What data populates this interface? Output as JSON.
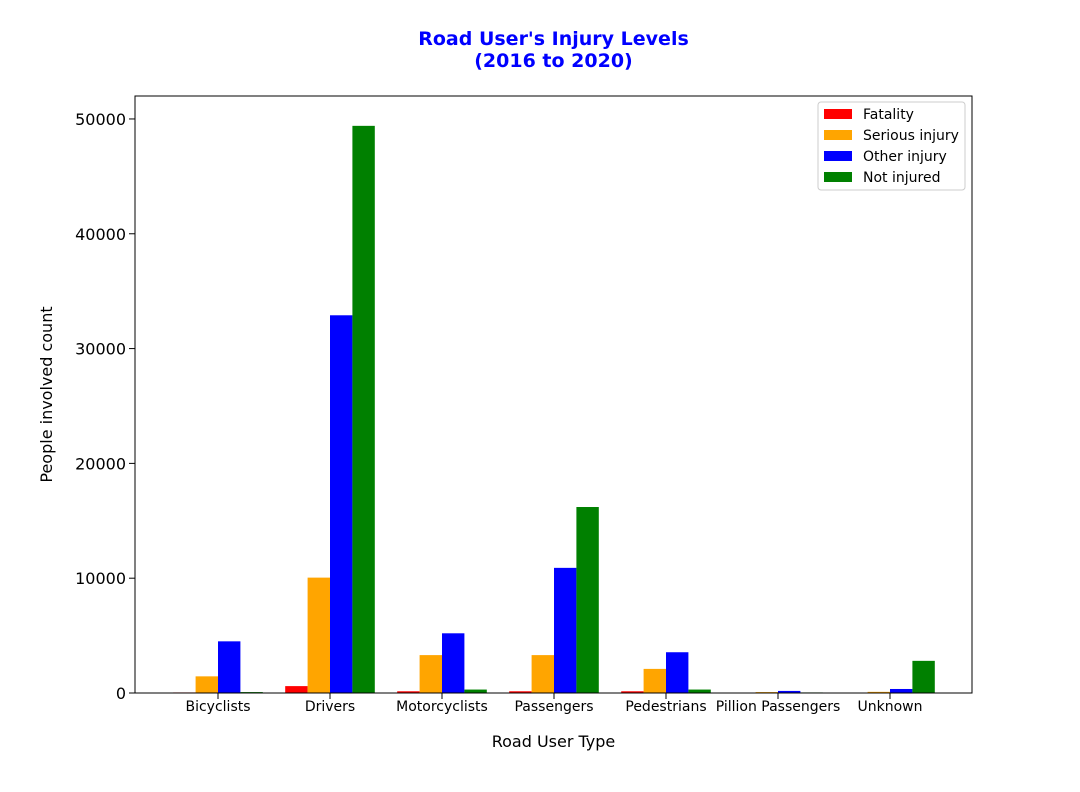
{
  "chart_data": {
    "type": "bar",
    "title_lines": [
      "Road User's Injury Levels",
      "(2016 to 2020)"
    ],
    "title_color": "#0000ff",
    "xlabel": "Road User Type",
    "ylabel": "People involved count",
    "categories": [
      "Bicyclists",
      "Drivers",
      "Motorcyclists",
      "Passengers",
      "Pedestrians",
      "Pillion Passengers",
      "Unknown"
    ],
    "ylim": [
      0,
      52000
    ],
    "yticks": [
      0,
      10000,
      20000,
      30000,
      40000,
      50000
    ],
    "legend_position": "top-right",
    "grid": false,
    "series": [
      {
        "name": "Fatality",
        "color": "#ff0000",
        "values": [
          50,
          600,
          150,
          150,
          150,
          10,
          10
        ]
      },
      {
        "name": "Serious injury",
        "color": "#ffa500",
        "values": [
          1450,
          10050,
          3300,
          3300,
          2100,
          80,
          100
        ]
      },
      {
        "name": "Other injury",
        "color": "#0000ff",
        "values": [
          4500,
          32900,
          5200,
          10900,
          3550,
          180,
          350
        ]
      },
      {
        "name": "Not injured",
        "color": "#008000",
        "values": [
          80,
          49400,
          300,
          16200,
          300,
          50,
          2800
        ]
      }
    ]
  }
}
